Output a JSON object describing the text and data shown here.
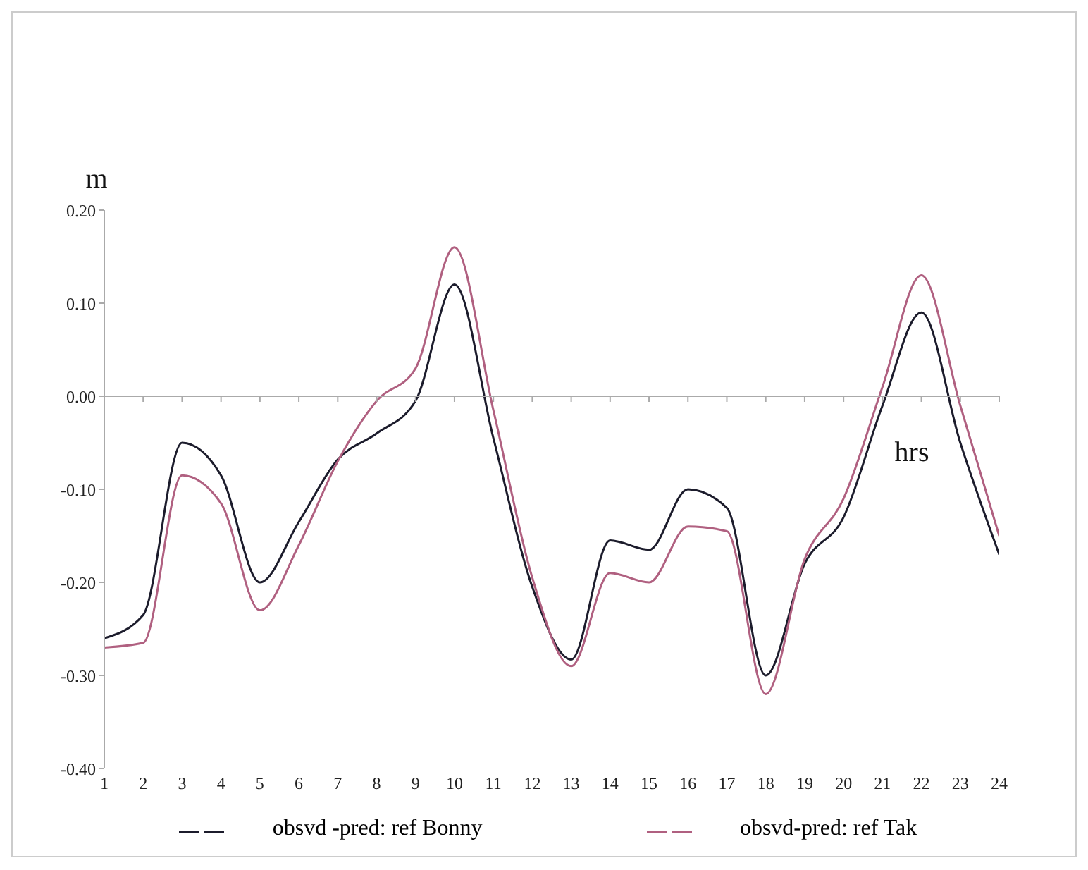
{
  "chart_data": {
    "type": "line",
    "xlabel": "hrs",
    "ylabel": "m",
    "x": [
      1,
      2,
      3,
      4,
      5,
      6,
      7,
      8,
      9,
      10,
      11,
      12,
      13,
      14,
      15,
      16,
      17,
      18,
      19,
      20,
      21,
      22,
      23,
      24
    ],
    "series": [
      {
        "name": "obsvd -pred: ref Bonny",
        "color": "#1c1c2c",
        "values": [
          -0.26,
          -0.235,
          -0.05,
          -0.085,
          -0.2,
          -0.135,
          -0.068,
          -0.04,
          -0.005,
          0.12,
          -0.045,
          -0.205,
          -0.283,
          -0.155,
          -0.165,
          -0.1,
          -0.12,
          -0.3,
          -0.18,
          -0.13,
          -0.01,
          0.09,
          -0.05,
          -0.17
        ]
      },
      {
        "name": "obsvd-pred: ref Tak",
        "color": "#b06080",
        "values": [
          -0.27,
          -0.265,
          -0.085,
          -0.115,
          -0.23,
          -0.16,
          -0.07,
          -0.005,
          0.03,
          0.16,
          -0.015,
          -0.195,
          -0.29,
          -0.19,
          -0.2,
          -0.14,
          -0.145,
          -0.32,
          -0.175,
          -0.11,
          0.01,
          0.13,
          -0.01,
          -0.15
        ]
      }
    ],
    "xlim": [
      1,
      24
    ],
    "xticks": [
      1,
      2,
      3,
      4,
      5,
      6,
      7,
      8,
      9,
      10,
      11,
      12,
      13,
      14,
      15,
      16,
      17,
      18,
      19,
      20,
      21,
      22,
      23,
      24
    ],
    "ylim": [
      -0.4,
      0.2
    ],
    "yticks": [
      {
        "value": -0.4,
        "label": "-0.40"
      },
      {
        "value": -0.3,
        "label": "-0.30"
      },
      {
        "value": -0.2,
        "label": "-0.20"
      },
      {
        "value": -0.1,
        "label": "-0.10"
      },
      {
        "value": 0,
        "label": "0.00"
      },
      {
        "value": 0.1,
        "label": "0.10"
      },
      {
        "value": 0.2,
        "label": "0.20"
      }
    ],
    "legend": "bottom",
    "marker": "none",
    "line_style": "solid"
  }
}
